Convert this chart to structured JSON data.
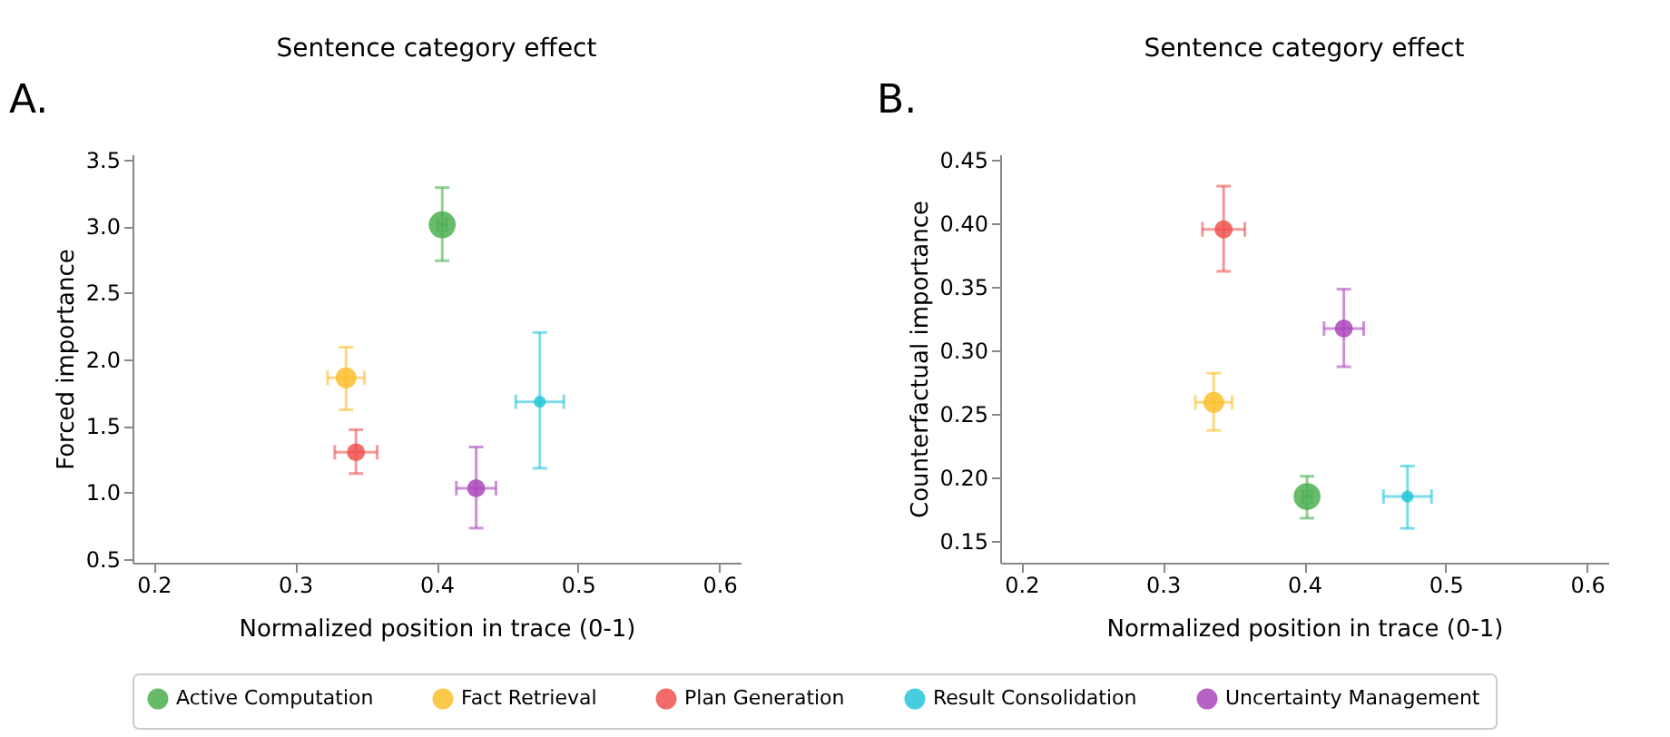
{
  "chart_data": [
    {
      "type": "bubble",
      "title": "Sentence category effect",
      "xlabel": "Normalized position in trace (0-1)",
      "ylabel": "Forced importance",
      "annotations": [
        "A."
      ],
      "xlim": [
        0.185,
        0.615
      ],
      "xticks": [
        0.2,
        0.3,
        0.4,
        0.5,
        0.6
      ],
      "ylim": [
        0.47,
        3.54
      ],
      "yticks": [
        0.5,
        {
          "value": 1,
          "label": "1.0"
        },
        1.5,
        {
          "value": 2,
          "label": "2.0"
        },
        2.5,
        {
          "value": 3,
          "label": "3.0"
        },
        3.5
      ],
      "grid": false,
      "legend": "bottom",
      "marker": "circle",
      "series": [
        {
          "name": "Active Computation",
          "color": "#4caf50",
          "x": [
            0.404
          ],
          "values": [
            3.01
          ],
          "errors": [
            [
              2.74,
              3.29
            ]
          ],
          "xerrors": [
            0.003
          ],
          "sizes": [
            1
          ]
        },
        {
          "name": "Fact Retrieval",
          "color": "#fbc02d",
          "x": [
            0.336
          ],
          "values": [
            1.86
          ],
          "errors": [
            [
              1.62,
              2.09
            ]
          ],
          "xerrors": [
            0.013
          ],
          "sizes": [
            0.6
          ]
        },
        {
          "name": "Plan Generation",
          "color": "#ef5350",
          "x": [
            0.343
          ],
          "values": [
            1.3
          ],
          "errors": [
            [
              1.14,
              1.47
            ]
          ],
          "xerrors": [
            0.015
          ],
          "sizes": [
            0.45
          ]
        },
        {
          "name": "Result Consolidation",
          "color": "#26c6da",
          "x": [
            0.473
          ],
          "values": [
            1.68
          ],
          "errors": [
            [
              1.18,
              2.2
            ]
          ],
          "xerrors": [
            0.017
          ],
          "sizes": [
            0.2
          ]
        },
        {
          "name": "Uncertainty Management",
          "color": "#ab47bc",
          "x": [
            0.428
          ],
          "values": [
            1.03
          ],
          "errors": [
            [
              0.73,
              1.34
            ]
          ],
          "xerrors": [
            0.014
          ],
          "sizes": [
            0.45
          ]
        }
      ]
    },
    {
      "type": "bubble",
      "title": "Sentence category effect",
      "xlabel": "Normalized position in trace (0-1)",
      "ylabel": "Counterfactual importance",
      "annotations": [
        "B."
      ],
      "xlim": [
        0.185,
        0.615
      ],
      "xticks": [
        0.2,
        0.3,
        0.4,
        0.5,
        0.6
      ],
      "ylim": [
        0.133,
        0.454
      ],
      "yticks": [
        0.15,
        {
          "value": 0.2,
          "label": "0.20"
        },
        0.25,
        {
          "value": 0.3,
          "label": "0.30"
        },
        0.35,
        {
          "value": 0.4,
          "label": "0.40"
        },
        0.45
      ],
      "grid": false,
      "legend": "bottom",
      "marker": "circle",
      "series": [
        {
          "name": "Active Computation",
          "color": "#4caf50",
          "x": [
            0.402
          ],
          "values": [
            0.185
          ],
          "errors": [
            [
              0.168,
              0.201
            ]
          ],
          "xerrors": [
            0.003
          ],
          "sizes": [
            1
          ]
        },
        {
          "name": "Fact Retrieval",
          "color": "#fbc02d",
          "x": [
            0.336
          ],
          "values": [
            0.259
          ],
          "errors": [
            [
              0.237,
              0.282
            ]
          ],
          "xerrors": [
            0.013
          ],
          "sizes": [
            0.6
          ]
        },
        {
          "name": "Plan Generation",
          "color": "#ef5350",
          "x": [
            0.343
          ],
          "values": [
            0.395
          ],
          "errors": [
            [
              0.362,
              0.429
            ]
          ],
          "xerrors": [
            0.015
          ],
          "sizes": [
            0.45
          ]
        },
        {
          "name": "Result Consolidation",
          "color": "#26c6da",
          "x": [
            0.473
          ],
          "values": [
            0.185
          ],
          "errors": [
            [
              0.16,
              0.209
            ]
          ],
          "xerrors": [
            0.017
          ],
          "sizes": [
            0.2
          ]
        },
        {
          "name": "Uncertainty Management",
          "color": "#ab47bc",
          "x": [
            0.428
          ],
          "values": [
            0.317
          ],
          "errors": [
            [
              0.287,
              0.348
            ]
          ],
          "xerrors": [
            0.014
          ],
          "sizes": [
            0.45
          ]
        }
      ]
    }
  ]
}
